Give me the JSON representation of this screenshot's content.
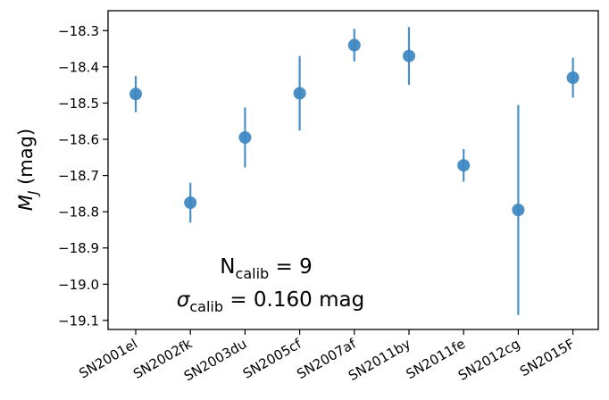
{
  "chart_data": {
    "type": "scatter",
    "title": "",
    "xlabel": "",
    "ylabel": "M",
    "ylabel_sub": "J",
    "ylabel_unit": " (mag)",
    "categories": [
      "SN2001el",
      "SN2002fk",
      "SN2003du",
      "SN2005cf",
      "SN2007af",
      "SN2011by",
      "SN2011fe",
      "SN2012cg",
      "SN2015F"
    ],
    "values": [
      -18.475,
      -18.775,
      -18.595,
      -18.473,
      -18.34,
      -18.37,
      -18.672,
      -18.795,
      -18.43
    ],
    "errors": [
      0.05,
      0.055,
      0.083,
      0.103,
      0.045,
      0.08,
      0.045,
      0.29,
      0.055
    ],
    "ylim": [
      -19.125,
      -18.245
    ],
    "yticks": [
      -18.3,
      -18.4,
      -18.5,
      -18.6,
      -18.7,
      -18.8,
      -18.9,
      -19.0,
      -19.1
    ],
    "ytick_labels": [
      "−18.3",
      "−18.4",
      "−18.5",
      "−18.6",
      "−18.7",
      "−18.8",
      "−18.9",
      "−19.0",
      "−19.1"
    ],
    "grid": false,
    "marker_color": "#3b87c2",
    "annotations": {
      "n_label": "N",
      "n_sub": "calib",
      "n_value": " = 9",
      "sigma_label": "σ",
      "sigma_sub": "calib",
      "sigma_value": " = 0.160 mag"
    }
  }
}
